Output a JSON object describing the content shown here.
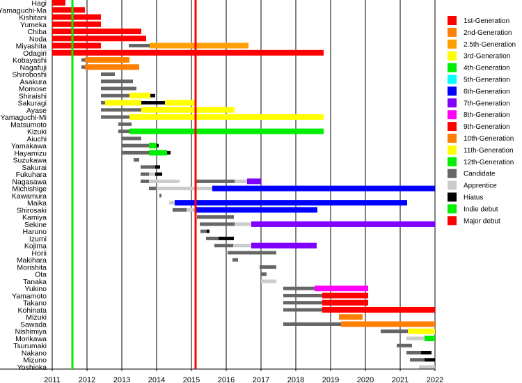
{
  "chart_data": {
    "type": "timeline",
    "xlim": [
      2011,
      2022
    ],
    "x_ticks": [
      "2011",
      "2012",
      "2013",
      "2014",
      "2015",
      "2016",
      "2017",
      "2018",
      "2019",
      "2020",
      "2021",
      "2022"
    ],
    "grid": "vertical at each year",
    "legend_position": "right",
    "legend": [
      {
        "key": "gen1",
        "label": "1st-Generation",
        "color": "#ff0000"
      },
      {
        "key": "gen2",
        "label": "2nd-Generation",
        "color": "#ff8000"
      },
      {
        "key": "gen25",
        "label": "2.5th-Generation",
        "color": "#ffa000"
      },
      {
        "key": "gen3",
        "label": "3rd-Generation",
        "color": "#ffff00"
      },
      {
        "key": "gen4",
        "label": "4th-Generation",
        "color": "#00ee00"
      },
      {
        "key": "gen5",
        "label": "5th-Generation",
        "color": "#00ffff"
      },
      {
        "key": "gen6",
        "label": "6th-Generation",
        "color": "#0000ff"
      },
      {
        "key": "gen7",
        "label": "7th-Generation",
        "color": "#8000ff"
      },
      {
        "key": "gen8",
        "label": "8th-Generation",
        "color": "#ff00ff"
      },
      {
        "key": "gen9",
        "label": "9th-Generation",
        "color": "#ff0000"
      },
      {
        "key": "gen10",
        "label": "10th-Generation",
        "color": "#ff8000"
      },
      {
        "key": "gen11",
        "label": "11th-Generation",
        "color": "#ffff00"
      },
      {
        "key": "gen12",
        "label": "12th-Generation",
        "color": "#00ee00"
      },
      {
        "key": "cand",
        "label": "Candidate",
        "color": "#666666"
      },
      {
        "key": "appr",
        "label": "Apprentice",
        "color": "#cccccc"
      },
      {
        "key": "hiatus",
        "label": "Hiatus",
        "color": "#000000"
      },
      {
        "key": "indie",
        "label": "Indie debut",
        "color": "#00ee00"
      },
      {
        "key": "major",
        "label": "Major debut",
        "color": "#ff0000"
      }
    ],
    "events": [
      {
        "key": "indie",
        "x": 2011.58
      },
      {
        "key": "major",
        "x": 2015.12
      }
    ],
    "rows": [
      {
        "name": "Hagi",
        "segments": [
          [
            2011.0,
            2011.38,
            "gen1"
          ]
        ]
      },
      {
        "name": "Yamaguchi-Ma",
        "segments": [
          [
            2011.0,
            2011.94,
            "gen1"
          ]
        ]
      },
      {
        "name": "Kishitani",
        "segments": [
          [
            2011.0,
            2012.4,
            "gen1"
          ]
        ]
      },
      {
        "name": "Yumeka",
        "segments": [
          [
            2011.0,
            2012.4,
            "gen1"
          ]
        ]
      },
      {
        "name": "Chiba",
        "segments": [
          [
            2011.0,
            2013.56,
            "gen1"
          ]
        ]
      },
      {
        "name": "Noda",
        "segments": [
          [
            2011.0,
            2013.7,
            "gen1"
          ]
        ]
      },
      {
        "name": "Miyashita",
        "segments": [
          [
            2011.0,
            2012.4,
            "gen1"
          ],
          [
            2013.2,
            2013.8,
            "cand"
          ],
          [
            2013.8,
            2016.64,
            "gen25"
          ]
        ]
      },
      {
        "name": "Odagiri",
        "segments": [
          [
            2011.0,
            2018.8,
            "gen1"
          ]
        ]
      },
      {
        "name": "Kobayashi",
        "segments": [
          [
            2011.84,
            2011.94,
            "cand"
          ],
          [
            2011.94,
            2013.22,
            "gen2"
          ]
        ]
      },
      {
        "name": "Nagafuji",
        "segments": [
          [
            2011.84,
            2011.94,
            "cand"
          ],
          [
            2011.94,
            2013.5,
            "gen2"
          ]
        ]
      },
      {
        "name": "Shiroboshi",
        "segments": [
          [
            2012.4,
            2012.8,
            "cand"
          ]
        ]
      },
      {
        "name": "Asakura",
        "segments": [
          [
            2012.4,
            2013.32,
            "cand"
          ]
        ]
      },
      {
        "name": "Momose",
        "segments": [
          [
            2012.4,
            2013.42,
            "cand"
          ]
        ]
      },
      {
        "name": "Shiraishi",
        "segments": [
          [
            2012.4,
            2013.22,
            "cand"
          ],
          [
            2013.22,
            2013.82,
            "gen3"
          ],
          [
            2013.82,
            2013.96,
            "hiatus"
          ]
        ]
      },
      {
        "name": "Sakuragi",
        "segments": [
          [
            2012.4,
            2012.52,
            "cand"
          ],
          [
            2012.52,
            2013.56,
            "gen3"
          ],
          [
            2013.56,
            2014.24,
            "hiatus"
          ],
          [
            2014.24,
            2015.1,
            "gen3"
          ]
        ]
      },
      {
        "name": "Ayase",
        "segments": [
          [
            2012.4,
            2013.56,
            "cand"
          ],
          [
            2013.56,
            2016.24,
            "gen3"
          ]
        ]
      },
      {
        "name": "Yamaguchi-Mi",
        "segments": [
          [
            2012.4,
            2013.22,
            "cand"
          ],
          [
            2013.22,
            2018.8,
            "gen3"
          ]
        ]
      },
      {
        "name": "Matsumoto",
        "segments": [
          [
            2012.9,
            2013.28,
            "cand"
          ]
        ]
      },
      {
        "name": "Kizuki",
        "segments": [
          [
            2012.9,
            2013.22,
            "cand"
          ],
          [
            2013.22,
            2018.8,
            "gen4"
          ]
        ]
      },
      {
        "name": "Aiuchi",
        "segments": [
          [
            2013.0,
            2013.56,
            "cand"
          ]
        ]
      },
      {
        "name": "Yamakawa",
        "segments": [
          [
            2013.0,
            2013.78,
            "cand"
          ],
          [
            2013.78,
            2014.0,
            "gen4"
          ],
          [
            2014.0,
            2014.06,
            "hiatus"
          ]
        ]
      },
      {
        "name": "Hayamizu",
        "segments": [
          [
            2013.0,
            2013.78,
            "cand"
          ],
          [
            2013.78,
            2014.3,
            "gen4"
          ],
          [
            2014.3,
            2014.4,
            "hiatus"
          ]
        ]
      },
      {
        "name": "Suzukawa",
        "segments": [
          [
            2013.34,
            2013.5,
            "cand"
          ]
        ]
      },
      {
        "name": "Sakurai",
        "segments": [
          [
            2013.54,
            2013.96,
            "cand"
          ],
          [
            2013.96,
            2014.1,
            "hiatus"
          ]
        ]
      },
      {
        "name": "Fukuhara",
        "segments": [
          [
            2013.54,
            2013.78,
            "cand"
          ],
          [
            2013.78,
            2013.96,
            "appr"
          ],
          [
            2013.96,
            2014.16,
            "hiatus"
          ]
        ]
      },
      {
        "name": "Nagasawa",
        "segments": [
          [
            2013.54,
            2013.78,
            "cand"
          ],
          [
            2013.78,
            2014.66,
            "appr"
          ],
          [
            2015.12,
            2016.24,
            "cand"
          ],
          [
            2016.24,
            2016.6,
            "appr"
          ],
          [
            2016.6,
            2017.0,
            "gen7"
          ]
        ]
      },
      {
        "name": "Michishige",
        "segments": [
          [
            2013.78,
            2014.0,
            "cand"
          ],
          [
            2014.0,
            2015.6,
            "appr"
          ],
          [
            2015.6,
            2022.0,
            "gen6"
          ]
        ]
      },
      {
        "name": "Kawamura",
        "segments": [
          [
            2014.08,
            2014.14,
            "cand"
          ]
        ]
      },
      {
        "name": "Maika",
        "segments": [
          [
            2014.36,
            2014.52,
            "appr"
          ],
          [
            2014.52,
            2021.2,
            "gen6"
          ]
        ]
      },
      {
        "name": "Shirosaki",
        "segments": [
          [
            2014.46,
            2014.86,
            "cand"
          ],
          [
            2014.86,
            2015.14,
            "appr"
          ],
          [
            2015.14,
            2018.62,
            "gen6"
          ]
        ]
      },
      {
        "name": "Kamiya",
        "segments": [
          [
            2015.16,
            2016.22,
            "cand"
          ]
        ]
      },
      {
        "name": "Sekine",
        "segments": [
          [
            2015.24,
            2016.24,
            "cand"
          ],
          [
            2016.24,
            2016.72,
            "appr"
          ],
          [
            2016.72,
            2022.0,
            "gen7"
          ]
        ]
      },
      {
        "name": "Haruno",
        "segments": [
          [
            2015.26,
            2015.44,
            "cand"
          ],
          [
            2015.44,
            2015.52,
            "hiatus"
          ]
        ]
      },
      {
        "name": "Izumi",
        "segments": [
          [
            2015.42,
            2015.78,
            "cand"
          ],
          [
            2015.78,
            2016.22,
            "hiatus"
          ]
        ]
      },
      {
        "name": "Kojima",
        "segments": [
          [
            2015.66,
            2016.2,
            "cand"
          ],
          [
            2016.2,
            2016.72,
            "appr"
          ],
          [
            2016.72,
            2018.6,
            "gen7"
          ]
        ]
      },
      {
        "name": "Horii",
        "segments": [
          [
            2016.04,
            2017.44,
            "cand"
          ]
        ]
      },
      {
        "name": "Makihara",
        "segments": [
          [
            2016.18,
            2016.34,
            "cand"
          ]
        ]
      },
      {
        "name": "Morishita",
        "segments": [
          [
            2016.96,
            2017.44,
            "cand"
          ]
        ]
      },
      {
        "name": "Ota",
        "segments": [
          [
            2017.0,
            2017.16,
            "cand"
          ]
        ]
      },
      {
        "name": "Tanaka",
        "segments": [
          [
            2017.0,
            2017.44,
            "appr"
          ]
        ]
      },
      {
        "name": "Yukino",
        "segments": [
          [
            2017.64,
            2018.54,
            "cand"
          ],
          [
            2018.54,
            2020.08,
            "gen8"
          ]
        ]
      },
      {
        "name": "Yamamoto",
        "segments": [
          [
            2017.64,
            2018.76,
            "cand"
          ],
          [
            2018.76,
            2020.08,
            "gen9"
          ]
        ]
      },
      {
        "name": "Takano",
        "segments": [
          [
            2017.64,
            2018.76,
            "cand"
          ],
          [
            2018.76,
            2020.08,
            "gen9"
          ]
        ]
      },
      {
        "name": "Kohinata",
        "segments": [
          [
            2017.64,
            2018.76,
            "cand"
          ],
          [
            2018.76,
            2022.0,
            "gen9"
          ]
        ]
      },
      {
        "name": "Mizuki",
        "segments": [
          [
            2019.24,
            2019.92,
            "gen10"
          ]
        ]
      },
      {
        "name": "Sawada",
        "segments": [
          [
            2017.64,
            2019.3,
            "cand"
          ],
          [
            2019.3,
            2022.0,
            "gen10"
          ]
        ]
      },
      {
        "name": "Nishimiya",
        "segments": [
          [
            2020.44,
            2021.22,
            "cand"
          ],
          [
            2021.22,
            2022.0,
            "gen11"
          ]
        ]
      },
      {
        "name": "Morikawa",
        "segments": [
          [
            2021.18,
            2021.7,
            "appr"
          ],
          [
            2021.7,
            2022.0,
            "gen12"
          ]
        ]
      },
      {
        "name": "Tsurumaki",
        "segments": [
          [
            2020.9,
            2021.34,
            "cand"
          ]
        ]
      },
      {
        "name": "Nakano",
        "segments": [
          [
            2021.18,
            2021.6,
            "cand"
          ],
          [
            2021.6,
            2021.9,
            "hiatus"
          ]
        ]
      },
      {
        "name": "Mizuno",
        "segments": [
          [
            2021.28,
            2021.7,
            "cand"
          ],
          [
            2021.7,
            2022.0,
            "hiatus"
          ]
        ]
      },
      {
        "name": "Yoshioka",
        "segments": [
          [
            2021.54,
            2022.0,
            "appr"
          ]
        ]
      }
    ]
  }
}
